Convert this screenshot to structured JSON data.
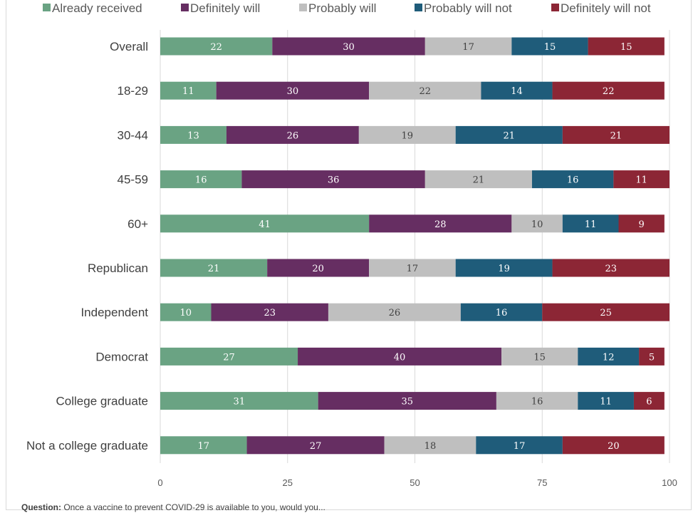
{
  "chart_data": {
    "type": "bar",
    "orientation": "horizontal",
    "stacked": true,
    "categories": [
      "Overall",
      "18-29",
      "30-44",
      "45-59",
      "60+",
      "Republican",
      "Independent",
      "Democrat",
      "College graduate",
      "Not a college graduate"
    ],
    "series": [
      {
        "name": "Already received",
        "color": "#6aa383",
        "values": [
          22,
          11,
          13,
          16,
          41,
          21,
          10,
          27,
          31,
          17
        ]
      },
      {
        "name": "Definitely will",
        "color": "#662e62",
        "values": [
          30,
          30,
          26,
          36,
          28,
          20,
          23,
          40,
          35,
          27
        ]
      },
      {
        "name": "Probably will",
        "color": "#bfbfbf",
        "values": [
          17,
          22,
          19,
          21,
          10,
          17,
          26,
          15,
          16,
          18
        ]
      },
      {
        "name": "Probably will not",
        "color": "#1f5c7a",
        "values": [
          15,
          14,
          21,
          16,
          11,
          19,
          16,
          12,
          11,
          17
        ]
      },
      {
        "name": "Definitely will not",
        "color": "#8c2635",
        "values": [
          15,
          22,
          21,
          11,
          9,
          23,
          25,
          5,
          6,
          20
        ]
      }
    ],
    "xlim": [
      0,
      100
    ],
    "xticks": [
      0,
      25,
      50,
      75,
      100
    ],
    "grid": true,
    "legend_position": "top"
  },
  "footnote": {
    "label": "Question:",
    "text": " Once a vaccine to prevent COVID-29 is available to you, would you..."
  }
}
